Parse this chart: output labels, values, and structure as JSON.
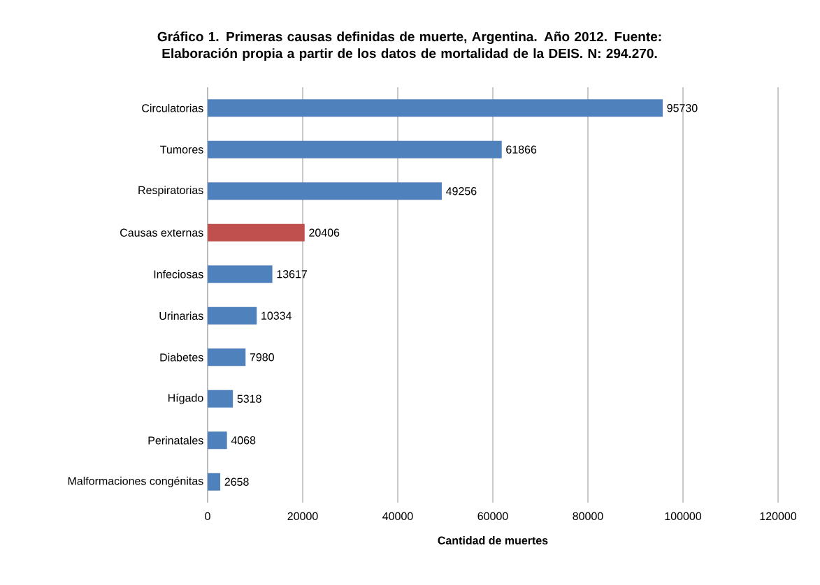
{
  "chart_data": {
    "type": "bar",
    "orientation": "horizontal",
    "title": "Gráfico 1. Primeras causas definidas de muerte, Argentina. Año 2012. Fuente: Elaboración propia a partir de los datos de mortalidad de la DEIS. N: 294.270.",
    "xlabel": "Cantidad de muertes",
    "categories": [
      "Circulatorias",
      "Tumores",
      "Respiratorias",
      "Causas externas",
      "Infeciosas",
      "Urinarias",
      "Diabetes",
      "Hígado",
      "Perinatales",
      "Malformaciones congénitas"
    ],
    "values": [
      95730,
      61866,
      49256,
      20406,
      13617,
      10334,
      7980,
      5318,
      4068,
      2658
    ],
    "colors": [
      "#4f81bd",
      "#4f81bd",
      "#4f81bd",
      "#c0504d",
      "#4f81bd",
      "#4f81bd",
      "#4f81bd",
      "#4f81bd",
      "#4f81bd",
      "#4f81bd"
    ],
    "data_labels": true,
    "xlim": [
      0,
      120000
    ],
    "xticks": [
      0,
      20000,
      40000,
      60000,
      80000,
      100000,
      120000
    ],
    "grid": "x"
  }
}
